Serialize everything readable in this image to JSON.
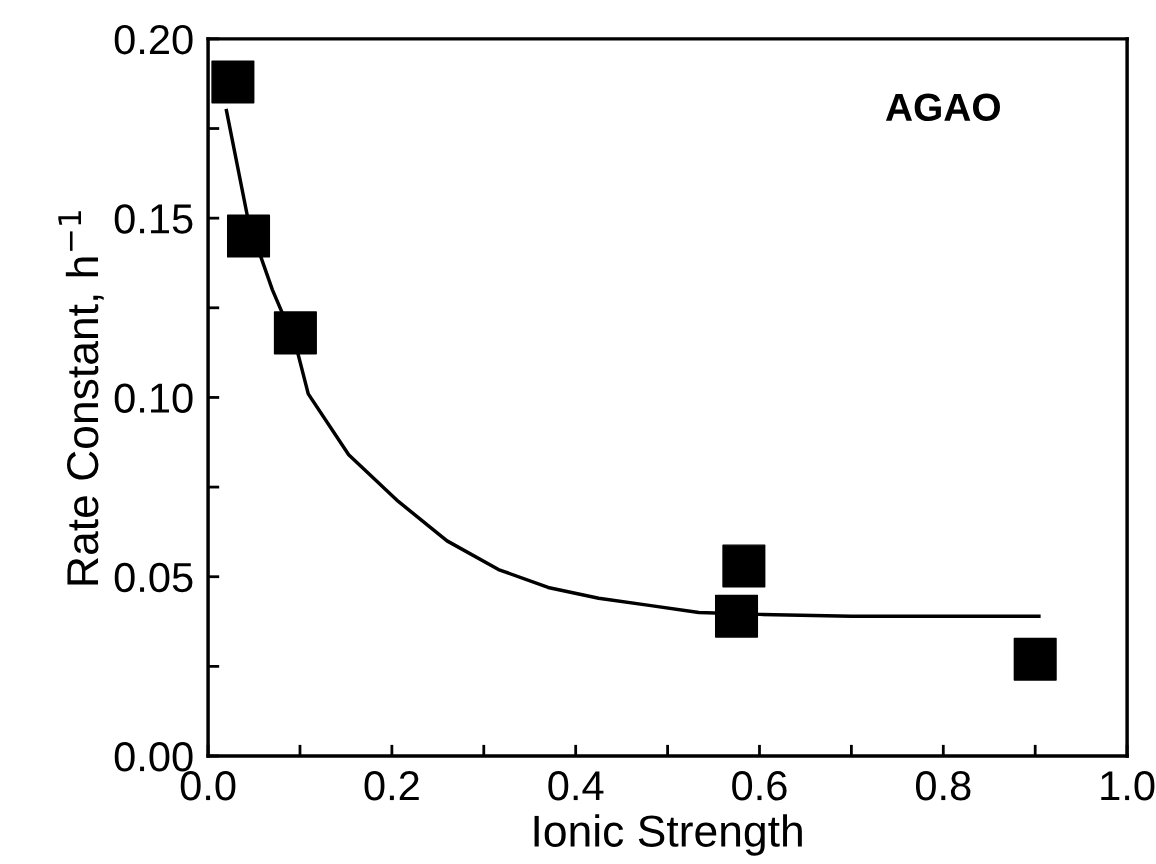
{
  "chart_data": {
    "type": "scatter",
    "xlabel": "Ionic Strength",
    "ylabel": "Rate Constant, h$^{−1}$",
    "annotations": [
      "AGAO"
    ],
    "xlim": [
      0.0,
      1.0
    ],
    "ylim": [
      0.0,
      0.2
    ],
    "xticks": [
      {
        "value": 0.0,
        "label": "0.0"
      },
      {
        "value": 0.1,
        "label": null
      },
      {
        "value": 0.2,
        "label": "0.2"
      },
      {
        "value": 0.3,
        "label": null
      },
      {
        "value": 0.4,
        "label": "0.4"
      },
      {
        "value": 0.5,
        "label": null
      },
      {
        "value": 0.6,
        "label": "0.6"
      },
      {
        "value": 0.7,
        "label": null
      },
      {
        "value": 0.8,
        "label": "0.8"
      },
      {
        "value": 0.9,
        "label": null
      },
      {
        "value": 1.0,
        "label": "1.0"
      }
    ],
    "yticks": [
      {
        "value": 0.0,
        "label": "0.00"
      },
      {
        "value": 0.025,
        "label": null
      },
      {
        "value": 0.05,
        "label": "0.05"
      },
      {
        "value": 0.075,
        "label": null
      },
      {
        "value": 0.1,
        "label": "0.10"
      },
      {
        "value": 0.125,
        "label": null
      },
      {
        "value": 0.15,
        "label": "0.15"
      },
      {
        "value": 0.175,
        "label": null
      },
      {
        "value": 0.2,
        "label": "0.20"
      }
    ],
    "grid": false,
    "legend": false,
    "series": [
      {
        "color": "#000000",
        "marker": "square",
        "x": [
          0.027,
          0.044,
          0.095,
          0.583,
          0.575,
          0.9
        ],
        "values": [
          0.188,
          0.145,
          0.118,
          0.053,
          0.039,
          0.027
        ]
      },
      {
        "type": "line",
        "color": "#000000",
        "marker": "none",
        "line_style": "solid",
        "x": [
          0.02,
          0.044,
          0.07,
          0.095,
          0.109,
          0.153,
          0.207,
          0.26,
          0.316,
          0.37,
          0.425,
          0.48,
          0.534,
          0.6,
          0.7,
          0.8,
          0.904
        ],
        "values": [
          0.18,
          0.149,
          0.13,
          0.115,
          0.101,
          0.084,
          0.071,
          0.06,
          0.052,
          0.047,
          0.044,
          0.042,
          0.04,
          0.0395,
          0.039,
          0.039,
          0.039
        ]
      }
    ]
  }
}
